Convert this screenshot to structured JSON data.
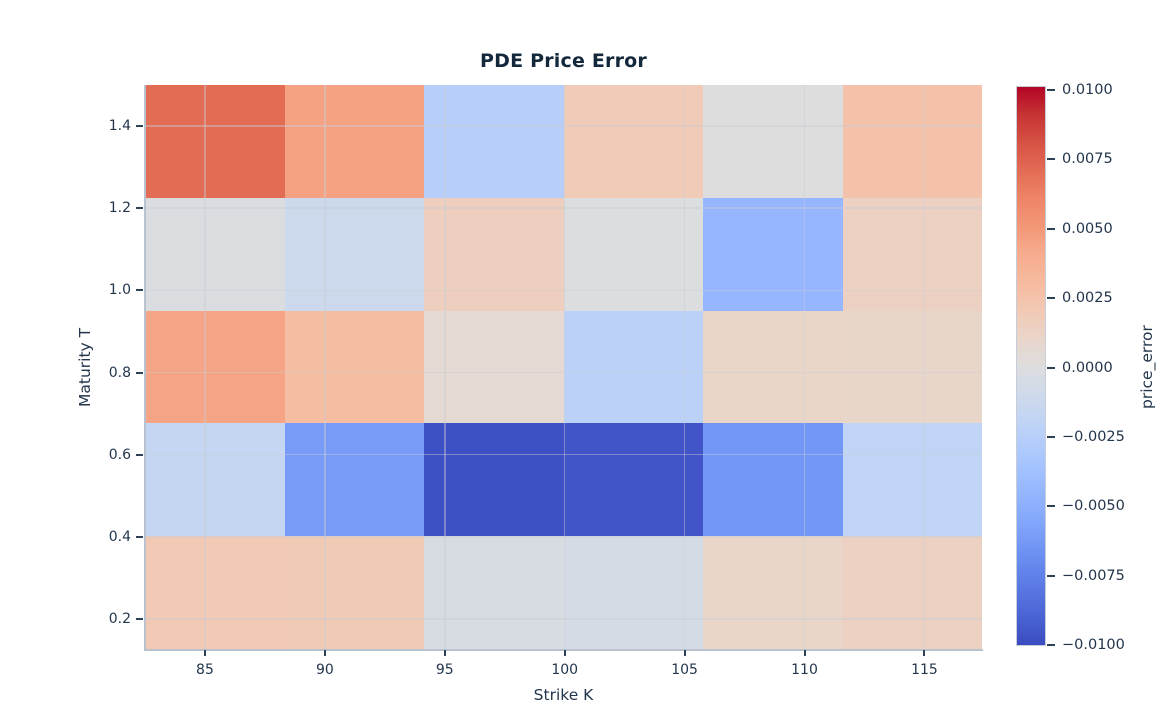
{
  "figure": {
    "background": "#ffffff",
    "title_color": "#14283c",
    "tick_color": "#24364c",
    "spine_color": "#b9c3cf"
  },
  "chart_data": {
    "type": "heatmap",
    "title": "PDE Price Error",
    "xlabel": "Strike K",
    "ylabel": "Maturity T",
    "colorbar_label": "price_error",
    "colormap": "coolwarm",
    "vmin": -0.01,
    "vmax": 0.01,
    "grid": true,
    "x_range": [
      82.5,
      117.4
    ],
    "y_range": [
      0.127,
      1.5
    ],
    "x_centers": [
      85.4,
      91.2,
      97.1,
      102.9,
      108.7,
      114.5
    ],
    "y_centers_top_to_bottom": [
      1.36,
      1.09,
      0.81,
      0.54,
      0.26
    ],
    "values_rows_top_to_bottom": [
      [
        0.007,
        0.0045,
        -0.0026,
        0.0018,
        0.0,
        0.0025
      ],
      [
        -0.0002,
        -0.0012,
        0.0015,
        -0.0001,
        -0.0045,
        0.0013
      ],
      [
        0.0044,
        0.0028,
        0.0005,
        -0.0023,
        0.001,
        0.0009
      ],
      [
        -0.0017,
        -0.0062,
        -0.0098,
        -0.0096,
        -0.0064,
        -0.002
      ],
      [
        0.002,
        0.0019,
        -0.0004,
        -0.0006,
        0.001,
        0.0013
      ]
    ],
    "x_ticks": [
      85,
      90,
      95,
      100,
      105,
      110,
      115
    ],
    "x_tick_labels": [
      "85",
      "90",
      "95",
      "100",
      "105",
      "110",
      "115"
    ],
    "y_ticks": [
      0.2,
      0.4,
      0.6,
      0.8,
      1.0,
      1.2,
      1.4
    ],
    "y_tick_labels": [
      "0.2",
      "0.4",
      "0.6",
      "0.8",
      "1.0",
      "1.2",
      "1.4"
    ],
    "colorbar_ticks": [
      0.01,
      0.0075,
      0.005,
      0.0025,
      0.0,
      -0.0025,
      -0.005,
      -0.0075,
      -0.01
    ],
    "colorbar_tick_labels": [
      "0.0100",
      "0.0075",
      "0.0050",
      "0.0025",
      "0.0000",
      "−0.0025",
      "−0.0050",
      "−0.0075",
      "−0.0100"
    ],
    "legend_position": "colorbar-right"
  }
}
